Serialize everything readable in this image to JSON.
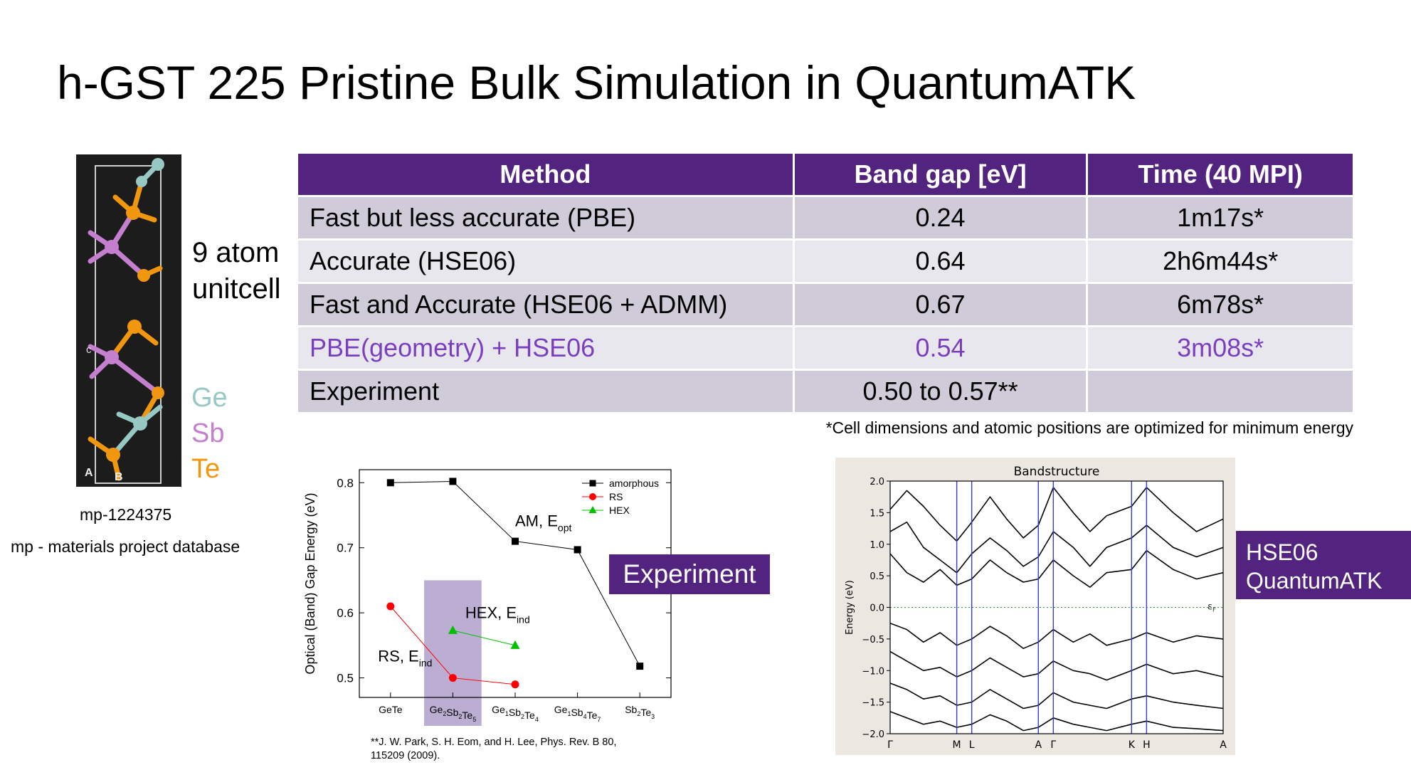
{
  "slide": {
    "title": "h-GST 225 Pristine Bulk Simulation in QuantumATK",
    "atom_label_line1": "9 atom",
    "atom_label_line2": "unitcell",
    "elements": [
      {
        "symbol": "Ge",
        "color": "#97c8c4"
      },
      {
        "symbol": "Sb",
        "color": "#c47fcf"
      },
      {
        "symbol": "Te",
        "color": "#f0960f"
      }
    ],
    "crystal_axes": {
      "a": "A",
      "b": "B",
      "c": "c"
    },
    "mp_id": "mp-1224375",
    "mp_note": "mp - materials project database",
    "footnote": "*Cell dimensions and atomic positions are optimized for minimum energy",
    "reference_line1": "**J. W. Park, S. H. Eom, and H. Lee, Phys. Rev. B 80,",
    "reference_line2": "115209 (2009).",
    "experiment_badge": "Experiment",
    "hse_badge_line1": "HSE06",
    "hse_badge_line2": "QuantumATK",
    "accent_color": "#52247f",
    "highlight_color": "#7a3fbf"
  },
  "table": {
    "headers": [
      "Method",
      "Band gap [eV]",
      "Time (40 MPI)"
    ],
    "rows": [
      {
        "method": "Fast but less accurate (PBE)",
        "gap": "0.24",
        "time": "1m17s*"
      },
      {
        "method": "Accurate (HSE06)",
        "gap": "0.64",
        "time": "2h6m44s*"
      },
      {
        "method": "Fast and Accurate (HSE06 + ADMM)",
        "gap": "0.67",
        "time": "6m78s*"
      },
      {
        "method": "PBE(geometry) + HSE06",
        "gap": "0.54",
        "time": "3m08s*"
      },
      {
        "method": "Experiment",
        "gap": "0.50 to 0.57**",
        "time": ""
      }
    ]
  },
  "chart_data": [
    {
      "type": "line",
      "ylabel": "Optical (Band) Gap Energy (eV)",
      "categories": [
        {
          "parts": [
            [
              "GeTe",
              ""
            ]
          ]
        },
        {
          "parts": [
            [
              "Ge",
              "2"
            ],
            [
              "Sb",
              "2"
            ],
            [
              "Te",
              "5"
            ]
          ]
        },
        {
          "parts": [
            [
              "Ge",
              "1"
            ],
            [
              "Sb",
              "2"
            ],
            [
              "Te",
              "4"
            ]
          ]
        },
        {
          "parts": [
            [
              "Ge",
              "1"
            ],
            [
              "Sb",
              "4"
            ],
            [
              "Te",
              "7"
            ]
          ]
        },
        {
          "parts": [
            [
              "Sb",
              "2"
            ],
            [
              "Te",
              "3"
            ]
          ]
        }
      ],
      "ylim": [
        0.47,
        0.82
      ],
      "yticks": [
        "0.5",
        "0.6",
        "0.7",
        "0.8"
      ],
      "highlight_category_index": 1,
      "series": [
        {
          "name": "amorphous",
          "color": "#000000",
          "marker": "square",
          "points": [
            [
              0,
              0.8
            ],
            [
              1,
              0.802
            ],
            [
              2,
              0.71
            ],
            [
              3,
              0.697
            ],
            [
              4,
              0.518
            ]
          ]
        },
        {
          "name": "RS",
          "color": "#ff0000",
          "marker": "circle",
          "points": [
            [
              0,
              0.61
            ],
            [
              1,
              0.5
            ],
            [
              2,
              0.49
            ]
          ]
        },
        {
          "name": "HEX",
          "color": "#00c000",
          "marker": "triangle",
          "points": [
            [
              1,
              0.573
            ],
            [
              2,
              0.55
            ]
          ]
        }
      ],
      "annotations": [
        {
          "main": "AM, E",
          "sub": "opt",
          "x": 2.0,
          "y": 0.733
        },
        {
          "main": "HEX, E",
          "sub": "ind",
          "x": 1.2,
          "y": 0.592
        },
        {
          "main": "RS, E",
          "sub": "ind",
          "x": -0.2,
          "y": 0.525
        }
      ]
    },
    {
      "type": "line",
      "title": "Bandstructure",
      "ylabel": "Energy (eV)",
      "ylim": [
        -2.0,
        2.0
      ],
      "yticks": [
        "−2.0",
        "−1.5",
        "−1.0",
        "−0.5",
        "0.0",
        "0.5",
        "1.0",
        "1.5",
        "2.0"
      ],
      "kpoints": [
        {
          "label": "Γ",
          "x": 0.0
        },
        {
          "label": "M",
          "x": 0.2
        },
        {
          "label": "L",
          "x": 0.245
        },
        {
          "label": "A",
          "x": 0.445
        },
        {
          "label": "Γ",
          "x": 0.49
        },
        {
          "label": "K",
          "x": 0.725
        },
        {
          "label": "H",
          "x": 0.77
        },
        {
          "label": "A",
          "x": 1.0
        }
      ],
      "fermi_label": "εF",
      "fermi_level": 0.0,
      "bands": [
        [
          [
            0,
            1.55
          ],
          [
            0.05,
            1.85
          ],
          [
            0.1,
            1.6
          ],
          [
            0.15,
            1.3
          ],
          [
            0.2,
            1.05
          ],
          [
            0.245,
            1.35
          ],
          [
            0.3,
            1.75
          ],
          [
            0.35,
            1.4
          ],
          [
            0.4,
            1.1
          ],
          [
            0.445,
            1.3
          ],
          [
            0.49,
            1.9
          ],
          [
            0.55,
            1.5
          ],
          [
            0.6,
            1.2
          ],
          [
            0.65,
            1.45
          ],
          [
            0.725,
            1.6
          ],
          [
            0.77,
            1.9
          ],
          [
            0.85,
            1.5
          ],
          [
            0.92,
            1.2
          ],
          [
            1.0,
            1.4
          ]
        ],
        [
          [
            0,
            1.2
          ],
          [
            0.05,
            1.35
          ],
          [
            0.1,
            0.95
          ],
          [
            0.15,
            0.75
          ],
          [
            0.2,
            0.55
          ],
          [
            0.245,
            0.85
          ],
          [
            0.3,
            1.1
          ],
          [
            0.35,
            0.9
          ],
          [
            0.4,
            0.65
          ],
          [
            0.445,
            0.8
          ],
          [
            0.49,
            1.2
          ],
          [
            0.55,
            0.95
          ],
          [
            0.6,
            0.65
          ],
          [
            0.65,
            0.95
          ],
          [
            0.725,
            1.1
          ],
          [
            0.77,
            1.3
          ],
          [
            0.85,
            0.95
          ],
          [
            0.92,
            0.8
          ],
          [
            1.0,
            0.95
          ]
        ],
        [
          [
            0,
            0.85
          ],
          [
            0.05,
            0.55
          ],
          [
            0.1,
            0.4
          ],
          [
            0.15,
            0.6
          ],
          [
            0.2,
            0.35
          ],
          [
            0.245,
            0.45
          ],
          [
            0.3,
            0.75
          ],
          [
            0.35,
            0.55
          ],
          [
            0.4,
            0.4
          ],
          [
            0.445,
            0.45
          ],
          [
            0.49,
            0.75
          ],
          [
            0.55,
            0.5
          ],
          [
            0.6,
            0.32
          ],
          [
            0.65,
            0.55
          ],
          [
            0.725,
            0.6
          ],
          [
            0.77,
            0.9
          ],
          [
            0.85,
            0.6
          ],
          [
            0.92,
            0.45
          ],
          [
            1.0,
            0.55
          ]
        ],
        [
          [
            0,
            -0.25
          ],
          [
            0.05,
            -0.35
          ],
          [
            0.1,
            -0.55
          ],
          [
            0.15,
            -0.4
          ],
          [
            0.2,
            -0.6
          ],
          [
            0.245,
            -0.5
          ],
          [
            0.3,
            -0.3
          ],
          [
            0.35,
            -0.45
          ],
          [
            0.4,
            -0.65
          ],
          [
            0.445,
            -0.55
          ],
          [
            0.49,
            -0.35
          ],
          [
            0.55,
            -0.55
          ],
          [
            0.6,
            -0.42
          ],
          [
            0.65,
            -0.6
          ],
          [
            0.725,
            -0.5
          ],
          [
            0.77,
            -0.4
          ],
          [
            0.85,
            -0.55
          ],
          [
            0.92,
            -0.45
          ],
          [
            1.0,
            -0.5
          ]
        ],
        [
          [
            0,
            -0.7
          ],
          [
            0.05,
            -0.85
          ],
          [
            0.1,
            -1.0
          ],
          [
            0.15,
            -0.95
          ],
          [
            0.2,
            -1.1
          ],
          [
            0.245,
            -1.0
          ],
          [
            0.3,
            -0.8
          ],
          [
            0.35,
            -0.95
          ],
          [
            0.4,
            -1.1
          ],
          [
            0.445,
            -1.05
          ],
          [
            0.49,
            -0.85
          ],
          [
            0.55,
            -1.0
          ],
          [
            0.6,
            -1.05
          ],
          [
            0.65,
            -1.15
          ],
          [
            0.725,
            -1.0
          ],
          [
            0.77,
            -0.9
          ],
          [
            0.85,
            -1.05
          ],
          [
            0.92,
            -1.0
          ],
          [
            1.0,
            -1.1
          ]
        ],
        [
          [
            0,
            -1.2
          ],
          [
            0.05,
            -1.3
          ],
          [
            0.1,
            -1.45
          ],
          [
            0.15,
            -1.4
          ],
          [
            0.2,
            -1.55
          ],
          [
            0.245,
            -1.5
          ],
          [
            0.3,
            -1.3
          ],
          [
            0.35,
            -1.45
          ],
          [
            0.4,
            -1.6
          ],
          [
            0.445,
            -1.55
          ],
          [
            0.49,
            -1.35
          ],
          [
            0.55,
            -1.5
          ],
          [
            0.6,
            -1.55
          ],
          [
            0.65,
            -1.6
          ],
          [
            0.725,
            -1.45
          ],
          [
            0.77,
            -1.4
          ],
          [
            0.85,
            -1.5
          ],
          [
            0.92,
            -1.55
          ],
          [
            1.0,
            -1.6
          ]
        ],
        [
          [
            0,
            -1.65
          ],
          [
            0.05,
            -1.75
          ],
          [
            0.1,
            -1.85
          ],
          [
            0.15,
            -1.8
          ],
          [
            0.2,
            -1.9
          ],
          [
            0.245,
            -1.85
          ],
          [
            0.3,
            -1.7
          ],
          [
            0.35,
            -1.8
          ],
          [
            0.4,
            -1.95
          ],
          [
            0.445,
            -1.9
          ],
          [
            0.49,
            -1.75
          ],
          [
            0.55,
            -1.85
          ],
          [
            0.6,
            -1.9
          ],
          [
            0.65,
            -1.95
          ],
          [
            0.725,
            -1.85
          ],
          [
            0.77,
            -1.8
          ],
          [
            0.85,
            -1.9
          ],
          [
            0.92,
            -1.92
          ],
          [
            1.0,
            -1.95
          ]
        ]
      ]
    }
  ]
}
